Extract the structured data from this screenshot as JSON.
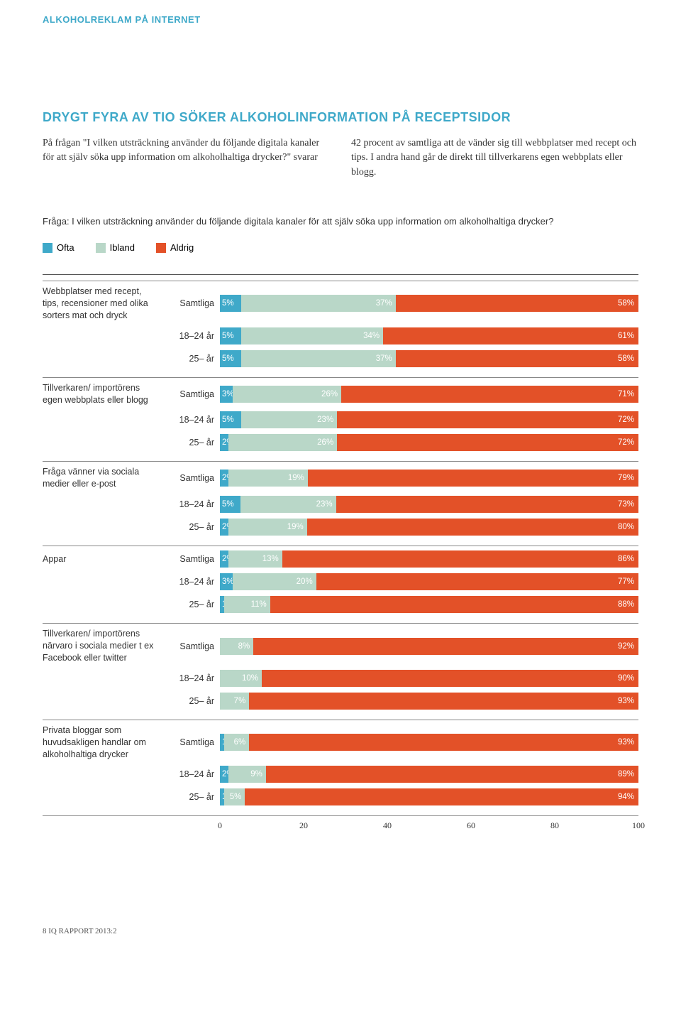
{
  "colors": {
    "ofta": "#3fa9c9",
    "ibland": "#b9d7c8",
    "aldrig": "#e35128",
    "accent": "#3fa9c9"
  },
  "header": "ALKOHOLREKLAM PÅ INTERNET",
  "title": "DRYGT FYRA AV TIO SÖKER ALKOHOLINFORMATION PÅ RECEPTSIDOR",
  "col1": "På frågan \"I vilken utsträckning använder du följande digitala kanaler för att själv söka upp information om alkoholhaltiga drycker?\" svarar",
  "col2": "42 procent av samtliga att de vänder sig till webb­platser med recept och tips. I andra hand går de direkt till tillverkarens egen webbplats eller blogg.",
  "question": "Fråga: I vilken utsträckning använder du följande digitala kanaler för att själv söka upp information om alkoholhaltiga drycker?",
  "legend": {
    "ofta": "Ofta",
    "ibland": "Ibland",
    "aldrig": "Aldrig"
  },
  "ageLabels": [
    "Samtliga",
    "18–24 år",
    "25– år"
  ],
  "xticks": [
    0,
    20,
    40,
    60,
    80,
    100
  ],
  "groups": [
    {
      "label": "Webbplatser med recept, tips, recensioner med olika sorters mat och dryck",
      "rows": [
        {
          "ofta": 5,
          "ibland": 37,
          "aldrig": 58
        },
        {
          "ofta": 5,
          "ibland": 34,
          "aldrig": 61
        },
        {
          "ofta": 5,
          "ibland": 37,
          "aldrig": 58
        }
      ]
    },
    {
      "label": "Tillverkaren/ importörens egen webbplats eller blogg",
      "rows": [
        {
          "ofta": 3,
          "ibland": 26,
          "aldrig": 71
        },
        {
          "ofta": 5,
          "ibland": 23,
          "aldrig": 72
        },
        {
          "ofta": 2,
          "ibland": 26,
          "aldrig": 72
        }
      ]
    },
    {
      "label": "Fråga vänner via sociala medier eller e-post",
      "rows": [
        {
          "ofta": 2,
          "ibland": 19,
          "aldrig": 79
        },
        {
          "ofta": 5,
          "ibland": 23,
          "aldrig": 73
        },
        {
          "ofta": 2,
          "ibland": 19,
          "aldrig": 80
        }
      ]
    },
    {
      "label": "Appar",
      "rows": [
        {
          "ofta": 2,
          "ibland": 13,
          "aldrig": 86
        },
        {
          "ofta": 3,
          "ibland": 20,
          "aldrig": 77
        },
        {
          "ofta": 1,
          "ibland": 11,
          "aldrig": 88
        }
      ]
    },
    {
      "label": "Tillverkaren/ importörens närvaro i sociala medier t ex Facebook eller twitter",
      "rows": [
        {
          "ofta": 0,
          "ibland": 8,
          "aldrig": 92
        },
        {
          "ofta": 0,
          "ibland": 10,
          "aldrig": 90
        },
        {
          "ofta": 0,
          "ibland": 7,
          "aldrig": 93
        }
      ]
    },
    {
      "label": "Privata bloggar som huvudsakligen handlar om alkoholhaltiga drycker",
      "rows": [
        {
          "ofta": 1,
          "ibland": 6,
          "aldrig": 93
        },
        {
          "ofta": 2,
          "ibland": 9,
          "aldrig": 89
        },
        {
          "ofta": 1,
          "ibland": 5,
          "aldrig": 94
        }
      ]
    }
  ],
  "footer": "8  IQ RAPPORT 2013:2"
}
